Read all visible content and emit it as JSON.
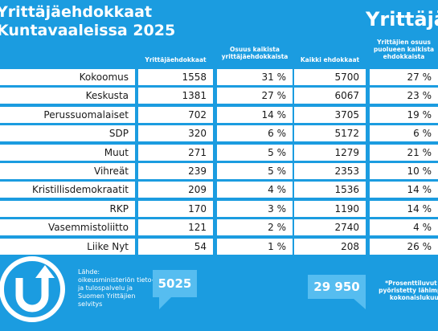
{
  "header": {
    "title_lines": [
      "Yrittäjäehdokkaat",
      "Kuntavaaleissa 2025"
    ],
    "logo": "Yrittäjät"
  },
  "table": {
    "columns": [
      "Yrittäjäehdokkaat",
      "Osuus kaikista yrittäjäehdokkaista",
      "Kaikki ehdokkaat",
      "Yrittäjien osuus puolueen kaikista ehdokkaista"
    ],
    "rows": [
      [
        "Kokoomus",
        "1558",
        "31 %",
        "5700",
        "27 %"
      ],
      [
        "Keskusta",
        "1381",
        "27 %",
        "6067",
        "23 %"
      ],
      [
        "Perussuomalaiset",
        "702",
        "14 %",
        "3705",
        "19 %"
      ],
      [
        "SDP",
        "320",
        "6 %",
        "5172",
        "6 %"
      ],
      [
        "Muut",
        "271",
        "5 %",
        "1279",
        "21 %"
      ],
      [
        "Vihreät",
        "239",
        "5 %",
        "2353",
        "10 %"
      ],
      [
        "Kristillisdemokraatit",
        "209",
        "4 %",
        "1536",
        "14 %"
      ],
      [
        "RKP",
        "170",
        "3 %",
        "1190",
        "14 %"
      ],
      [
        "Vasemmistoliitto",
        "121",
        "2 %",
        "2740",
        "4 %"
      ],
      [
        "Liike Nyt",
        "54",
        "1 %",
        "208",
        "26 %"
      ]
    ]
  },
  "footer": {
    "source": "Lähde: oikeusministeriön tieto- ja tulospalvelu ja Suomen Yrittäjien selvitys",
    "total_entrepreneurs": "5025",
    "total_candidates": "29 950",
    "note": "*Prosenttiluvut on pyöristetty lähimpään kokonaislukuun"
  }
}
